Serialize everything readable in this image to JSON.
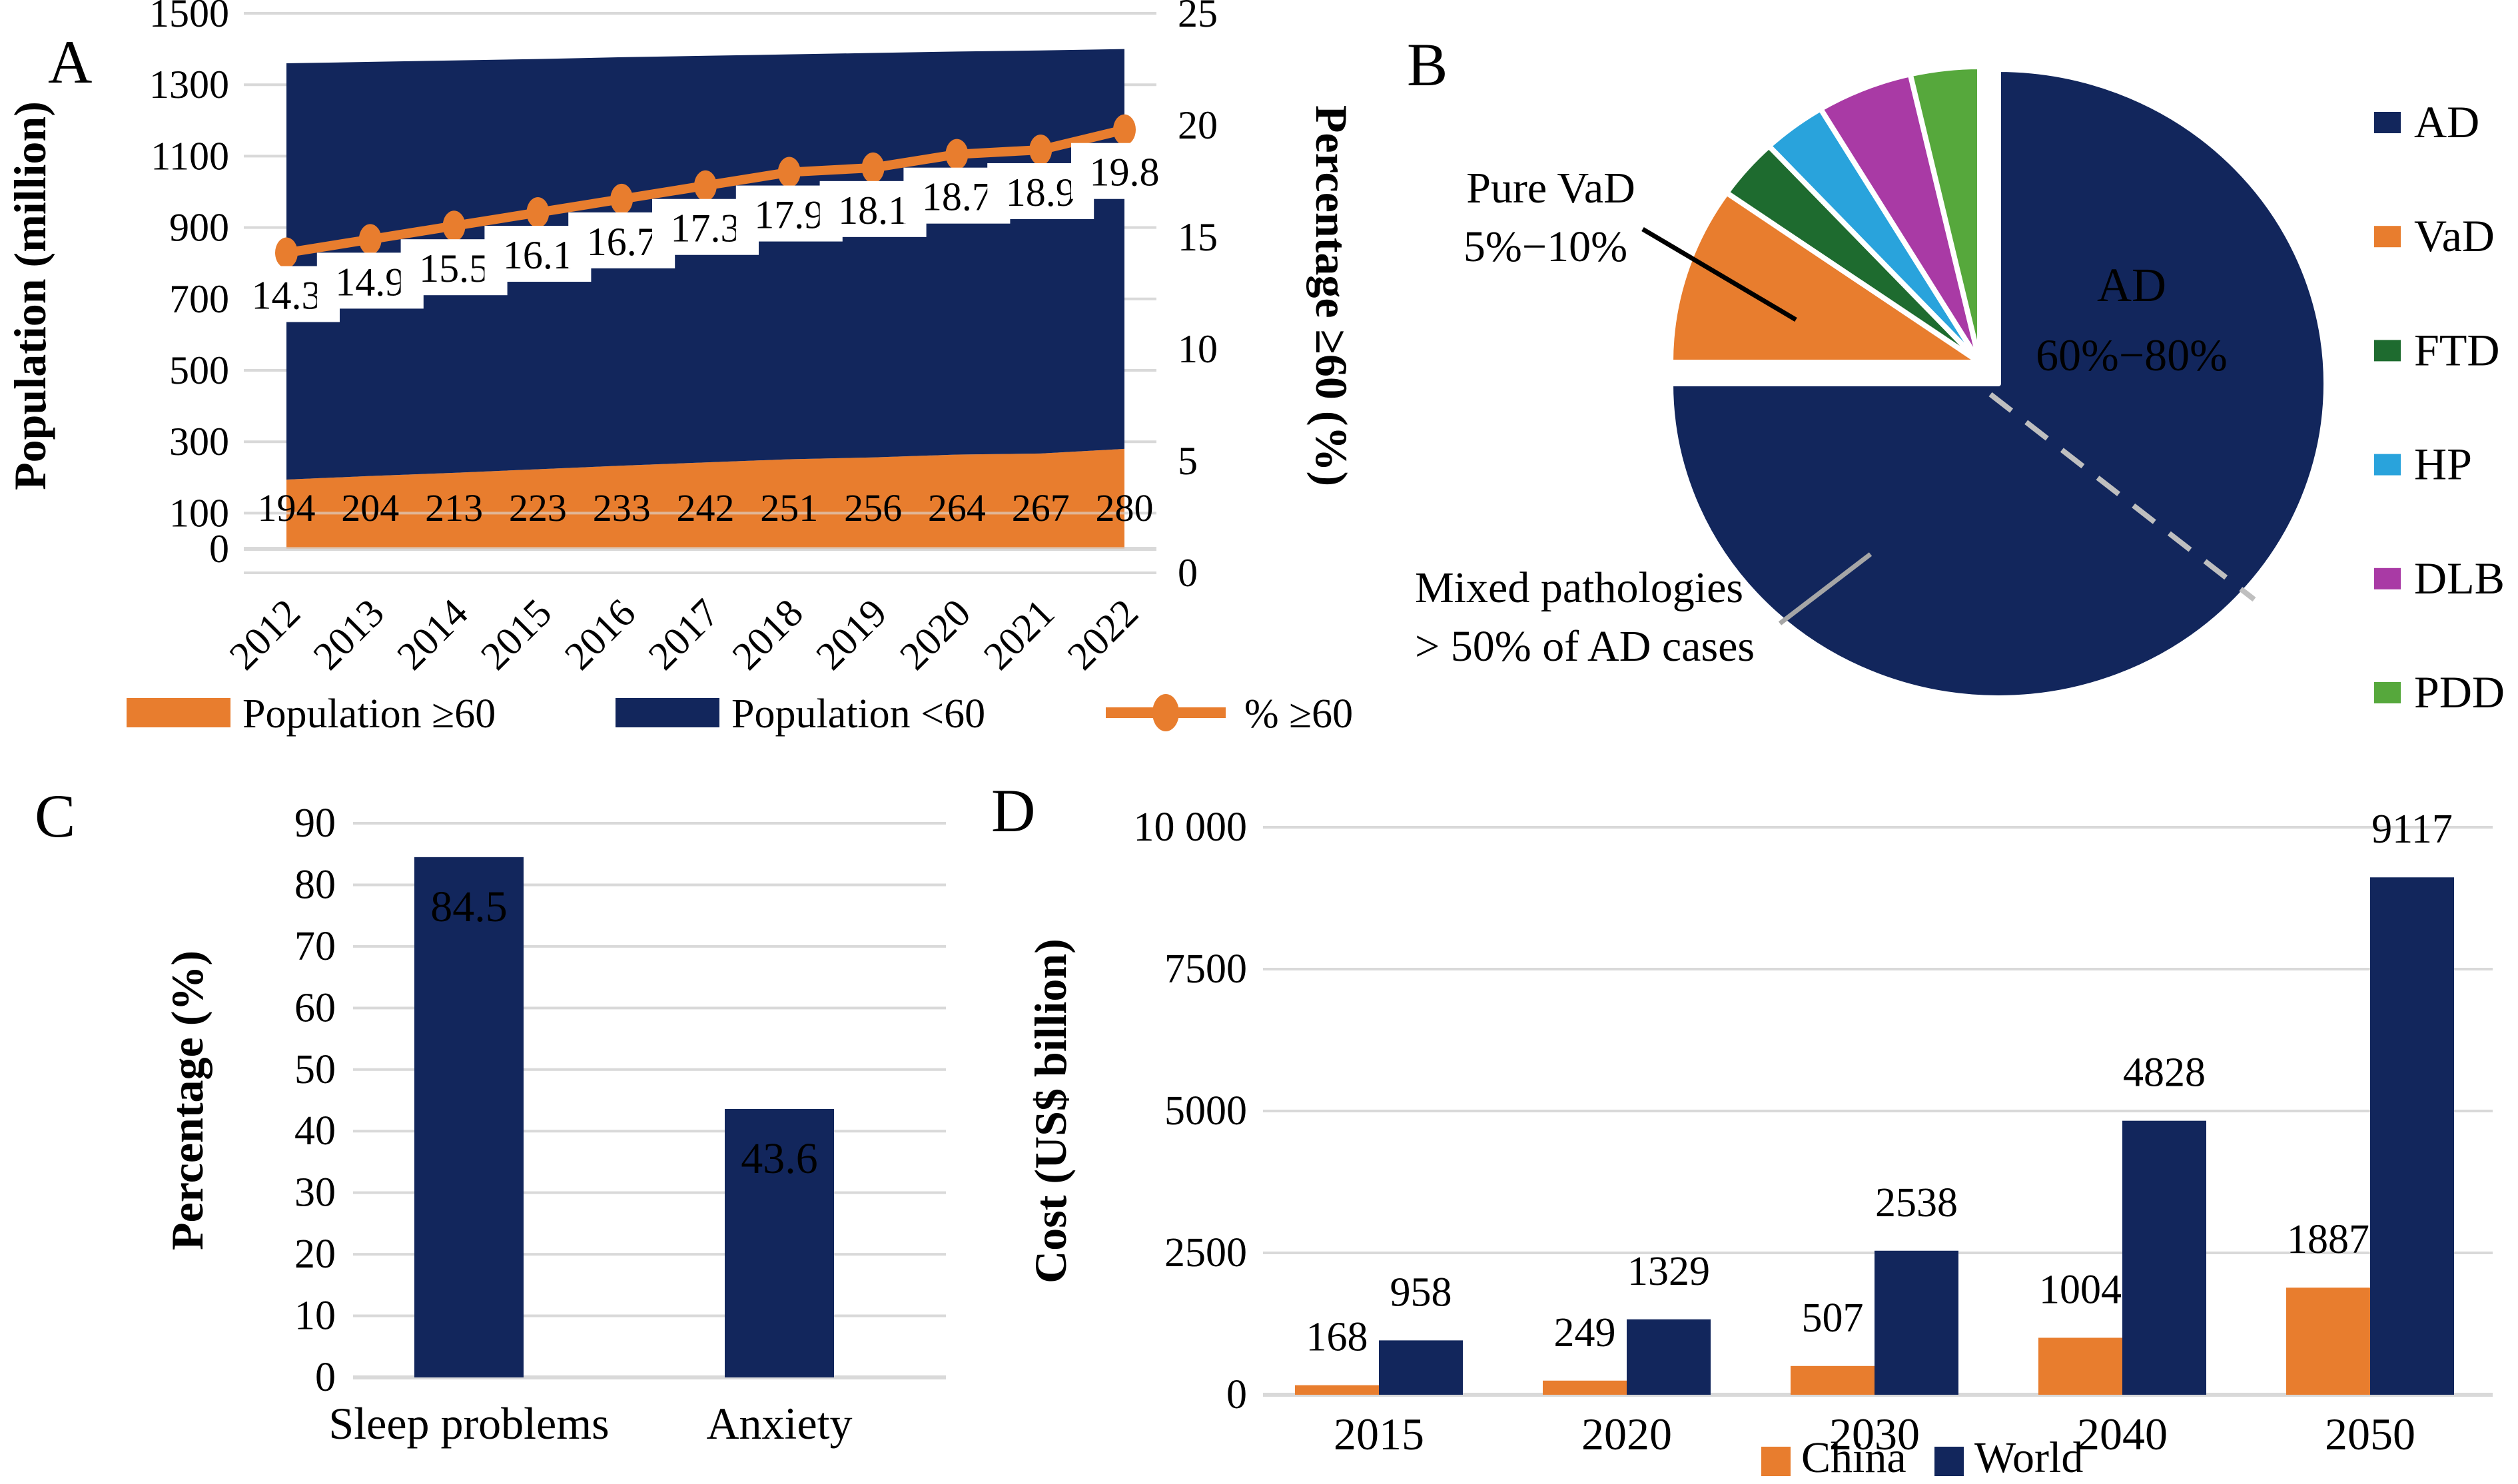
{
  "figure_type": "four-panel dementia statistics figure",
  "panels": {
    "A": {
      "label": "A",
      "chart_data": {
        "type": "area",
        "subtype": "stacked-area-with-line",
        "x": [
          "2012",
          "2013",
          "2014",
          "2015",
          "2016",
          "2017",
          "2018",
          "2019",
          "2020",
          "2021",
          "2022"
        ],
        "series": [
          {
            "name": "Population ≥60",
            "kind": "area-stacked",
            "axis": "left",
            "color": "#E87D2E",
            "values": [
              194,
              204,
              213,
              223,
              233,
              242,
              251,
              256,
              264,
              267,
              280
            ]
          },
          {
            "name": "Population <60",
            "kind": "area-stacked",
            "axis": "left",
            "color": "#12265C",
            "values": [
              1166,
              1160,
              1155,
              1149,
              1144,
              1139,
              1134,
              1133,
              1129,
              1129,
              1120
            ]
          },
          {
            "name": "% ≥60",
            "kind": "line",
            "axis": "right",
            "color": "#E87D2E",
            "values": [
              14.3,
              14.9,
              15.5,
              16.1,
              16.7,
              17.3,
              17.9,
              18.1,
              18.7,
              18.9,
              19.8
            ]
          }
        ],
        "left_axis": {
          "title": "Population (million)",
          "min": 0,
          "max": 1500,
          "ticks": [
            0,
            100,
            300,
            500,
            700,
            900,
            1100,
            1300,
            1500
          ]
        },
        "right_axis": {
          "title": "Percentage ≥60 (%)",
          "min": 0,
          "max": 25,
          "ticks": [
            0,
            5,
            10,
            15,
            20,
            25
          ]
        },
        "legend": [
          "Population ≥60",
          "Population <60",
          "% ≥60"
        ],
        "grid": true,
        "grid_color": "#D9D9D9",
        "label_box_color": "#FFFFFF"
      }
    },
    "B": {
      "label": "B",
      "chart_data": {
        "type": "pie",
        "slices": [
          {
            "name": "AD",
            "color": "#12265C",
            "start_deg": 0,
            "end_deg": 270,
            "share_label": "60%−80%"
          },
          {
            "name": "VaD",
            "color": "#E87D2E",
            "start_deg": 270,
            "end_deg": 305,
            "share_label": "5%−10%"
          },
          {
            "name": "FTD",
            "color": "#1E6B2F",
            "start_deg": 305,
            "end_deg": 317
          },
          {
            "name": "HP",
            "color": "#29A3DC",
            "start_deg": 317,
            "end_deg": 329
          },
          {
            "name": "DLB",
            "color": "#A93AA5",
            "start_deg": 329,
            "end_deg": 347
          },
          {
            "name": "PDD",
            "color": "#56A83C",
            "start_deg": 347,
            "end_deg": 360
          }
        ],
        "legend": [
          "AD",
          "VaD",
          "FTD",
          "HP",
          "DLB",
          "PDD"
        ],
        "inner_label": {
          "lines": [
            "AD",
            "60%−80%"
          ],
          "color": "#FFFFFF"
        },
        "callouts": [
          {
            "lines": [
              "Pure VaD",
              "5%−10%"
            ],
            "target": "VaD",
            "line_color": "#000000"
          },
          {
            "lines": [
              "Mixed pathologies",
              "> 50% of AD cases"
            ],
            "target": "AD",
            "line_color": "#A6A6A6"
          }
        ],
        "dashed_divider_color": "#BFBFBF"
      }
    },
    "C": {
      "label": "C",
      "chart_data": {
        "type": "bar",
        "categories": [
          "Sleep problems",
          "Anxiety"
        ],
        "values": [
          84.5,
          43.6
        ],
        "bar_color": "#12265C",
        "value_label_color": "#FFFFFF",
        "ylabel": "Percentage (%)",
        "ylim": [
          0,
          90
        ],
        "yticks": [
          0,
          10,
          20,
          30,
          40,
          50,
          60,
          70,
          80,
          90
        ],
        "grid": true,
        "grid_color": "#D9D9D9"
      }
    },
    "D": {
      "label": "D",
      "chart_data": {
        "type": "bar",
        "subtype": "grouped",
        "categories": [
          "2015",
          "2020",
          "2030",
          "2040",
          "2050"
        ],
        "series": [
          {
            "name": "China",
            "color": "#E87D2E",
            "values": [
              168,
              249,
              507,
              1004,
              1887
            ]
          },
          {
            "name": "World",
            "color": "#12265C",
            "values": [
              958,
              1329,
              2538,
              4828,
              9117
            ]
          }
        ],
        "ylabel": "Cost (US$ billion)",
        "ylim": [
          0,
          10000
        ],
        "yticks": [
          {
            "v": 0,
            "label": "0"
          },
          {
            "v": 2500,
            "label": "2500"
          },
          {
            "v": 5000,
            "label": "5000"
          },
          {
            "v": 7500,
            "label": "7500"
          },
          {
            "v": 10000,
            "label": "10 000"
          }
        ],
        "legend": [
          "China",
          "World"
        ],
        "grid": true,
        "grid_color": "#D9D9D9"
      }
    }
  }
}
